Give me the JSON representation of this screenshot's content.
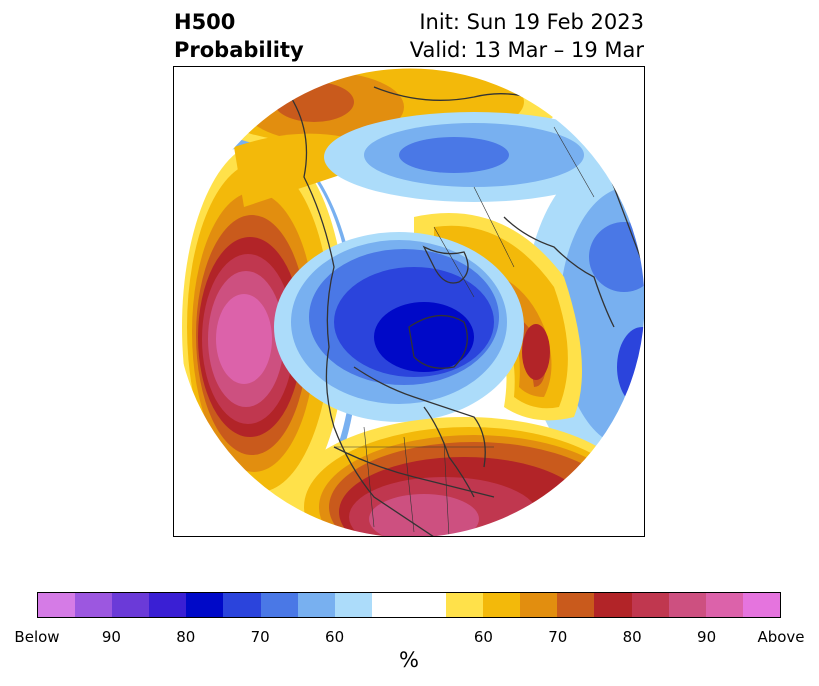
{
  "header": {
    "title_line1": "H500",
    "title_line2": "Probability",
    "init_text": "Init: Sun 19 Feb 2023",
    "valid_text": "Valid: 13 Mar – 19 Mar"
  },
  "colorbar": {
    "unit": "%",
    "tick_labels": [
      "Below",
      "90",
      "80",
      "70",
      "60",
      "60",
      "70",
      "80",
      "90",
      "Above"
    ],
    "colors_below": [
      "#d57be6",
      "#9c57e0",
      "#6b3ad8",
      "#3a1fd4",
      "#0009c8",
      "#2b44dc",
      "#4a78e6",
      "#78b0f0",
      "#acdcfa"
    ],
    "color_neutral": "#ffffff",
    "colors_above": [
      "#ffe14a",
      "#f3b90a",
      "#e28e0f",
      "#c95a1c",
      "#b22428",
      "#c0374f",
      "#cd5080",
      "#dc62aa",
      "#e574de"
    ]
  },
  "map": {
    "projection": "polar-stereographic-north",
    "land_color": "#ffffff",
    "coast_color": "#333333"
  }
}
